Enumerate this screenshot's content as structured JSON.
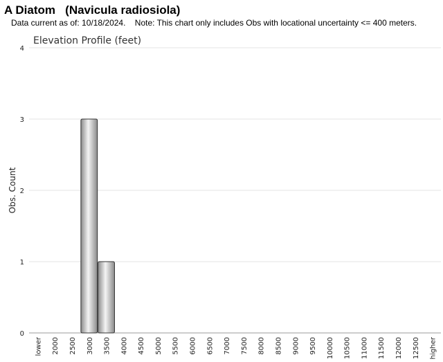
{
  "header": {
    "title": "A Diatom   (Navicula radiosiola)",
    "note": "Data current as of: 10/18/2024.    Note: This chart only includes Obs with locational uncertainty <= 400 meters."
  },
  "chart_data": {
    "type": "bar",
    "title": "Elevation Profile (feet)",
    "xlabel": "",
    "ylabel": "Obs. Count",
    "categories": [
      "lower",
      "2000",
      "2500",
      "3000",
      "3500",
      "4000",
      "4500",
      "5000",
      "5500",
      "6000",
      "6500",
      "7000",
      "7500",
      "8000",
      "8500",
      "9000",
      "9500",
      "10000",
      "10500",
      "11000",
      "11500",
      "12000",
      "12500",
      "higher"
    ],
    "values": [
      0,
      0,
      0,
      3,
      1,
      0,
      0,
      0,
      0,
      0,
      0,
      0,
      0,
      0,
      0,
      0,
      0,
      0,
      0,
      0,
      0,
      0,
      0,
      0
    ],
    "yticks": [
      0,
      1,
      2,
      3,
      4
    ],
    "ylim": [
      0,
      4
    ],
    "grid": true,
    "legend": "none",
    "colors": {
      "bar_light": "#f4f4f4",
      "bar_dark": "#8a8a8a",
      "bar_stroke": "#333333",
      "grid": "#e3e3e3"
    }
  }
}
